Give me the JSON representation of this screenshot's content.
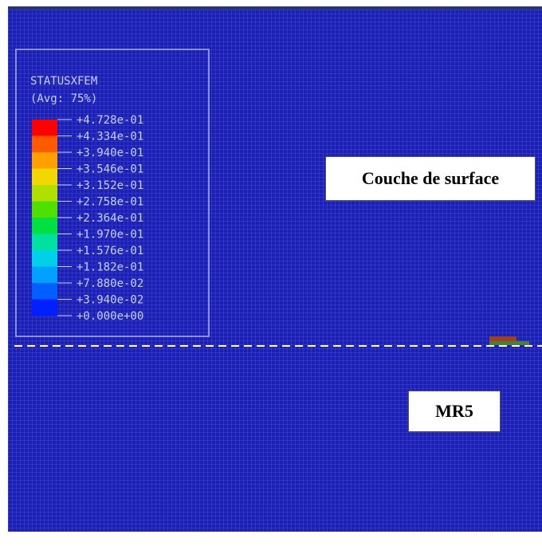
{
  "legend": {
    "title": "STATUSXFEM",
    "subtitle": "(Avg: 75%)",
    "labels": [
      "+4.728e-01",
      "+4.334e-01",
      "+3.940e-01",
      "+3.546e-01",
      "+3.152e-01",
      "+2.758e-01",
      "+2.364e-01",
      "+1.970e-01",
      "+1.576e-01",
      "+1.182e-01",
      "+7.880e-02",
      "+3.940e-02",
      "+0.000e+00"
    ]
  },
  "annotations": {
    "upper": "Couche de surface",
    "lower": "MR5"
  }
}
